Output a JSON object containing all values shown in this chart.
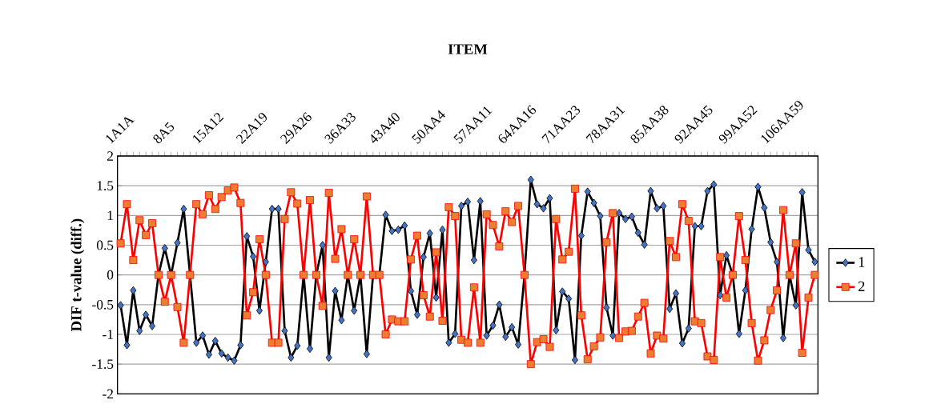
{
  "chart_data": {
    "type": "line",
    "xlabel": "ITEM",
    "ylabel": "DIF t-value (diff.)",
    "categories": [
      "1A1A",
      null,
      null,
      null,
      null,
      null,
      null,
      "8A5",
      null,
      null,
      null,
      null,
      null,
      null,
      "15A12",
      null,
      null,
      null,
      null,
      null,
      null,
      "22A19",
      null,
      null,
      null,
      null,
      null,
      null,
      "29A26",
      null,
      null,
      null,
      null,
      null,
      null,
      "36A33",
      null,
      null,
      null,
      null,
      null,
      null,
      "43A40",
      null,
      null,
      null,
      null,
      null,
      null,
      "50AA4",
      null,
      null,
      null,
      null,
      null,
      null,
      "57AA11",
      null,
      null,
      null,
      null,
      null,
      null,
      "64AA16",
      null,
      null,
      null,
      null,
      null,
      null,
      "71AA23",
      null,
      null,
      null,
      null,
      null,
      null,
      "78AA31",
      null,
      null,
      null,
      null,
      null,
      null,
      "85AA38",
      null,
      null,
      null,
      null,
      null,
      null,
      "92AA45",
      null,
      null,
      null,
      null,
      null,
      null,
      "99AA52",
      null,
      null,
      null,
      null,
      null,
      null,
      "106AA59",
      null,
      null,
      null,
      null,
      null
    ],
    "series": [
      {
        "name": "1",
        "color": "#4472c4",
        "marker": "diamond",
        "values": [
          -0.51,
          -1.18,
          -0.26,
          -0.94,
          -0.67,
          -0.86,
          0,
          0.45,
          0,
          0.54,
          1.11,
          0,
          -1.14,
          -1.02,
          -1.34,
          -1.11,
          -1.32,
          -1.39,
          -1.44,
          -1.18,
          0.65,
          0.31,
          -0.6,
          0.22,
          1.11,
          1.11,
          -0.94,
          -1.39,
          -1.19,
          0,
          -1.24,
          0,
          0.5,
          -1.39,
          -0.27,
          -0.76,
          0,
          -0.6,
          0,
          -1.33,
          0,
          0,
          1.01,
          0.74,
          0.76,
          0.83,
          -0.27,
          -0.67,
          0.3,
          0.7,
          -0.38,
          0.76,
          -1.14,
          -0.99,
          1.16,
          1.23,
          0.25,
          1.24,
          -1.02,
          -0.85,
          -0.5,
          -1.04,
          -0.88,
          -1.17,
          0,
          1.6,
          1.19,
          1.12,
          1.29,
          -0.93,
          -0.28,
          -0.4,
          -1.43,
          0.66,
          1.4,
          1.21,
          0.99,
          -0.55,
          -1.02,
          1.04,
          0.94,
          0.98,
          0.71,
          0.51,
          1.41,
          1.12,
          1.16,
          -0.57,
          -0.31,
          -1.15,
          -0.9,
          0.82,
          0.82,
          1.41,
          1.52,
          -0.34,
          0.33,
          0,
          -0.99,
          -0.26,
          0.77,
          1.48,
          1.13,
          0.55,
          0.22,
          -1.06,
          0,
          -0.51,
          1.39,
          0.42,
          0.22
        ]
      },
      {
        "name": "2",
        "color": "#ed7d31",
        "marker": "square",
        "values": [
          0.53,
          1.19,
          0.25,
          0.92,
          0.67,
          0.87,
          0,
          -0.45,
          0,
          -0.54,
          -1.14,
          0,
          1.19,
          1.02,
          1.34,
          1.11,
          1.31,
          1.42,
          1.47,
          1.21,
          -0.68,
          -0.29,
          0.6,
          0,
          -1.14,
          -1.14,
          0.94,
          1.39,
          1.2,
          0,
          1.26,
          0,
          -0.52,
          1.38,
          0.27,
          0.77,
          0,
          0.6,
          0,
          1.32,
          0,
          0,
          -1.0,
          -0.75,
          -0.78,
          -0.78,
          0.26,
          0.66,
          -0.34,
          -0.7,
          0.38,
          -0.77,
          1.14,
          0.99,
          -1.09,
          -1.14,
          -0.21,
          -1.14,
          1.02,
          0.84,
          0.48,
          1.07,
          0.89,
          1.16,
          0,
          -1.5,
          -1.13,
          -1.08,
          -1.21,
          0.94,
          0.26,
          0.39,
          1.45,
          -0.68,
          -1.42,
          -1.2,
          -1.05,
          0.55,
          1.04,
          -1.06,
          -0.95,
          -0.94,
          -0.7,
          -0.47,
          -1.32,
          -1.02,
          -1.07,
          0.57,
          0.3,
          1.19,
          0.91,
          -0.78,
          -0.81,
          -1.37,
          -1.43,
          0.3,
          -0.38,
          0,
          0.99,
          0.25,
          -0.81,
          -1.44,
          -1.1,
          -0.59,
          -0.26,
          1.09,
          0,
          0.53,
          -1.31,
          -0.38,
          0
        ]
      }
    ],
    "ylim": [
      -2,
      2
    ],
    "yticks": [
      -2,
      -1.5,
      -1,
      -0.5,
      0,
      0.5,
      1,
      1.5,
      2
    ],
    "grid": "y",
    "legend": "right",
    "line_style": "solid"
  }
}
